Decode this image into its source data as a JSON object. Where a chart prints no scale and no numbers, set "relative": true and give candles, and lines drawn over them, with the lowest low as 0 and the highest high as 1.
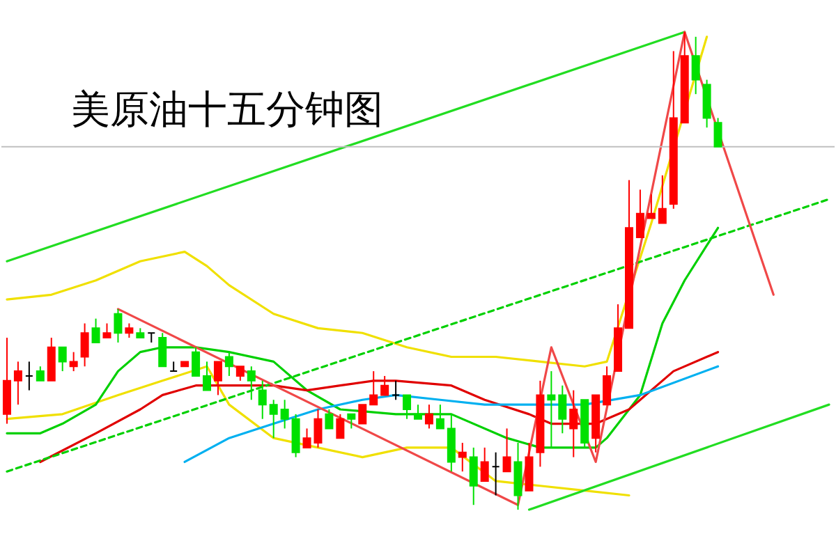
{
  "chart_data": {
    "type": "candlestick",
    "title": "美原油十五分钟图",
    "relative": true,
    "tick_labels": false,
    "categories": [
      null,
      null,
      null,
      null,
      null,
      null,
      null,
      null,
      null,
      null,
      null,
      null,
      null,
      null,
      null,
      null,
      null,
      null,
      null,
      null,
      null,
      null,
      null,
      null,
      null,
      null,
      null,
      null,
      null,
      null,
      null,
      null,
      null,
      null,
      null,
      null,
      null,
      null,
      null,
      null,
      null,
      null,
      null,
      null,
      null,
      null,
      null,
      null,
      null,
      null,
      null,
      null,
      null,
      null,
      null,
      null,
      null,
      null,
      null,
      null,
      null,
      null,
      null,
      null,
      null,
      null,
      null,
      null,
      null,
      null,
      null,
      null,
      null,
      null,
      null
    ],
    "ohlc": [
      [
        0.2,
        0.36,
        0.18,
        0.27
      ],
      [
        0.27,
        0.31,
        0.22,
        0.29
      ],
      [
        0.28,
        0.31,
        0.25,
        0.28
      ],
      [
        0.29,
        0.3,
        0.27,
        0.27
      ],
      [
        0.27,
        0.36,
        0.27,
        0.34
      ],
      [
        0.34,
        0.34,
        0.29,
        0.31
      ],
      [
        0.3,
        0.33,
        0.29,
        0.31
      ],
      [
        0.32,
        0.39,
        0.3,
        0.37
      ],
      [
        0.38,
        0.4,
        0.35,
        0.35
      ],
      [
        0.36,
        0.39,
        0.36,
        0.37
      ],
      [
        0.41,
        0.42,
        0.35,
        0.37
      ],
      [
        0.37,
        0.39,
        0.36,
        0.38
      ],
      [
        0.37,
        0.38,
        0.36,
        0.36
      ],
      [
        0.37,
        0.37,
        0.35,
        0.37
      ],
      [
        0.36,
        0.37,
        0.3,
        0.3
      ],
      [
        0.29,
        0.31,
        0.29,
        0.29
      ],
      [
        0.3,
        0.31,
        0.3,
        0.31
      ],
      [
        0.33,
        0.34,
        0.28,
        0.28
      ],
      [
        0.28,
        0.31,
        0.25,
        0.25
      ],
      [
        0.27,
        0.31,
        0.24,
        0.31
      ],
      [
        0.32,
        0.33,
        0.28,
        0.3
      ],
      [
        0.28,
        0.3,
        0.27,
        0.3
      ],
      [
        0.29,
        0.3,
        0.23,
        0.27
      ],
      [
        0.25,
        0.27,
        0.19,
        0.22
      ],
      [
        0.22,
        0.23,
        0.15,
        0.2
      ],
      [
        0.21,
        0.23,
        0.17,
        0.19
      ],
      [
        0.19,
        0.2,
        0.11,
        0.12
      ],
      [
        0.13,
        0.17,
        0.13,
        0.15
      ],
      [
        0.14,
        0.21,
        0.13,
        0.19
      ],
      [
        0.2,
        0.21,
        0.17,
        0.17
      ],
      [
        0.15,
        0.2,
        0.15,
        0.19
      ],
      [
        0.2,
        0.2,
        0.17,
        0.19
      ],
      [
        0.18,
        0.22,
        0.18,
        0.22
      ],
      [
        0.22,
        0.29,
        0.22,
        0.24
      ],
      [
        0.24,
        0.28,
        0.24,
        0.26
      ],
      [
        0.24,
        0.27,
        0.23,
        0.24
      ],
      [
        0.24,
        0.24,
        0.19,
        0.21
      ],
      [
        0.2,
        0.22,
        0.19,
        0.19
      ],
      [
        0.18,
        0.22,
        0.17,
        0.2
      ],
      [
        0.19,
        0.22,
        0.17,
        0.17
      ],
      [
        0.17,
        0.2,
        0.08,
        0.1
      ],
      [
        0.11,
        0.14,
        0.08,
        0.12
      ],
      [
        0.11,
        0.13,
        0.01,
        0.05
      ],
      [
        0.06,
        0.13,
        0.06,
        0.1
      ],
      [
        0.09,
        0.12,
        0.03,
        0.09
      ],
      [
        0.08,
        0.17,
        0.08,
        0.11
      ],
      [
        0.1,
        0.14,
        0.0,
        0.03
      ],
      [
        0.04,
        0.14,
        0.04,
        0.11
      ],
      [
        0.12,
        0.27,
        0.09,
        0.24
      ],
      [
        0.24,
        0.29,
        0.13,
        0.23
      ],
      [
        0.24,
        0.26,
        0.16,
        0.19
      ],
      [
        0.17,
        0.25,
        0.11,
        0.21
      ],
      [
        0.23,
        0.23,
        0.13,
        0.14
      ],
      [
        0.15,
        0.24,
        0.12,
        0.24
      ],
      [
        0.22,
        0.3,
        0.22,
        0.28
      ],
      [
        0.29,
        0.43,
        0.29,
        0.38
      ],
      [
        0.38,
        0.69,
        0.38,
        0.59
      ],
      [
        0.57,
        0.67,
        0.57,
        0.62
      ],
      [
        0.61,
        0.66,
        0.61,
        0.62
      ],
      [
        0.6,
        0.7,
        0.6,
        0.63
      ],
      [
        0.64,
        0.96,
        0.63,
        0.82
      ],
      [
        0.81,
        1.0,
        0.81,
        0.95
      ],
      [
        0.95,
        0.99,
        0.87,
        0.9
      ],
      [
        0.89,
        0.9,
        0.8,
        0.82
      ],
      [
        0.81,
        0.82,
        0.76,
        0.76
      ],
      null,
      null,
      null,
      null,
      null,
      null,
      null,
      null,
      null,
      null
    ],
    "colors": [
      "#ff0000",
      "#ff0000",
      "#000000",
      "#00e000",
      "#ff0000",
      "#00e000",
      "#ff0000",
      "#ff0000",
      "#00e000",
      "#ff0000",
      "#00e000",
      "#ff0000",
      "#00e000",
      "#000000",
      "#00e000",
      "#000000",
      "#ff0000",
      "#00e000",
      "#00e000",
      "#ff0000",
      "#00e000",
      "#ff0000",
      "#00e000",
      "#00e000",
      "#00e000",
      "#00e000",
      "#00e000",
      "#ff0000",
      "#ff0000",
      "#00e000",
      "#ff0000",
      "#00e000",
      "#ff0000",
      "#ff0000",
      "#ff0000",
      "#000000",
      "#00e000",
      "#00e000",
      "#ff0000",
      "#00e000",
      "#00e000",
      "#ff0000",
      "#00e000",
      "#ff0000",
      "#000000",
      "#ff0000",
      "#00e000",
      "#ff0000",
      "#ff0000",
      "#00e000",
      "#00e000",
      "#ff0000",
      "#00e000",
      "#ff0000",
      "#ff0000",
      "#ff0000",
      "#ff0000",
      "#ff0000",
      "#ff0000",
      "#ff0000",
      "#ff0000",
      "#ff0000",
      "#00e000",
      "#00e000",
      "#00e000",
      null,
      null,
      null,
      null,
      null,
      null,
      null,
      null,
      null,
      null
    ],
    "series": [
      {
        "type": "line",
        "color": "#f0e000",
        "values": [
          0.44,
          null,
          null,
          null,
          0.45,
          null,
          null,
          null,
          0.48,
          null,
          null,
          null,
          0.52,
          null,
          null,
          null,
          0.54,
          null,
          0.51,
          null,
          0.47,
          null,
          null,
          null,
          0.41,
          null,
          null,
          null,
          0.38,
          null,
          null,
          null,
          0.37,
          null,
          null,
          null,
          0.34,
          null,
          null,
          null,
          0.32,
          null,
          null,
          null,
          0.32,
          null,
          null,
          null,
          0.31,
          null,
          null,
          null,
          0.3,
          null,
          0.31,
          null,
          null,
          null,
          0.6,
          null,
          null,
          null,
          null,
          0.99,
          null,
          null,
          null,
          null,
          null,
          null,
          null,
          null,
          null,
          null,
          null
        ]
      },
      {
        "type": "line",
        "color": "#f0e000",
        "values": [
          0.19,
          null,
          null,
          null,
          null,
          0.2,
          null,
          null,
          null,
          null,
          0.24,
          null,
          null,
          null,
          0.27,
          null,
          null,
          null,
          0.3,
          null,
          0.22,
          null,
          null,
          null,
          0.15,
          null,
          null,
          null,
          0.13,
          null,
          null,
          null,
          0.11,
          null,
          null,
          null,
          0.13,
          null,
          null,
          null,
          0.13,
          null,
          null,
          null,
          0.06,
          null,
          null,
          null,
          0.05,
          null,
          null,
          null,
          0.04,
          null,
          null,
          null,
          0.03,
          null,
          null,
          null,
          null,
          null,
          null,
          null,
          null,
          null,
          null,
          null,
          null,
          null,
          null,
          null,
          null,
          null,
          null
        ]
      },
      {
        "type": "line",
        "color": "#00d000",
        "values": [
          0.16,
          null,
          null,
          0.16,
          null,
          0.18,
          null,
          null,
          0.22,
          null,
          0.29,
          null,
          0.33,
          null,
          0.34,
          null,
          null,
          0.34,
          null,
          null,
          0.33,
          null,
          null,
          null,
          0.31,
          null,
          null,
          0.25,
          null,
          null,
          0.21,
          null,
          null,
          null,
          null,
          0.2,
          null,
          null,
          null,
          null,
          0.2,
          null,
          null,
          null,
          null,
          0.15,
          null,
          null,
          0.13,
          null,
          null,
          null,
          null,
          0.13,
          0.15,
          null,
          null,
          0.24,
          null,
          0.39,
          null,
          0.48,
          null,
          null,
          0.59,
          null,
          null,
          null,
          null,
          null,
          null,
          null,
          null,
          null,
          null
        ]
      },
      {
        "type": "line",
        "color": "#e00000",
        "values": [
          null,
          null,
          null,
          0.1,
          null,
          null,
          null,
          null,
          0.16,
          null,
          null,
          null,
          0.21,
          null,
          0.24,
          null,
          null,
          0.26,
          null,
          null,
          0.26,
          null,
          null,
          null,
          0.26,
          null,
          null,
          0.25,
          null,
          null,
          0.26,
          null,
          null,
          0.27,
          null,
          0.27,
          null,
          null,
          null,
          null,
          0.26,
          null,
          null,
          0.23,
          null,
          null,
          null,
          0.2,
          null,
          0.18,
          null,
          null,
          null,
          0.18,
          null,
          null,
          0.21,
          null,
          null,
          null,
          0.29,
          null,
          null,
          null,
          0.33,
          null,
          null,
          null,
          null,
          null,
          null,
          null,
          null,
          null,
          null
        ]
      },
      {
        "type": "line",
        "color": "#00b0f0",
        "values": [
          null,
          null,
          null,
          null,
          null,
          null,
          null,
          null,
          null,
          null,
          null,
          null,
          null,
          null,
          null,
          null,
          0.1,
          null,
          null,
          null,
          0.15,
          null,
          null,
          null,
          0.18,
          null,
          null,
          null,
          0.21,
          null,
          null,
          null,
          0.23,
          null,
          null,
          0.24,
          null,
          null,
          null,
          0.23,
          null,
          null,
          null,
          0.22,
          null,
          null,
          null,
          0.22,
          null,
          null,
          null,
          null,
          0.22,
          null,
          null,
          null,
          null,
          0.24,
          null,
          null,
          null,
          null,
          null,
          null,
          0.3,
          null,
          null,
          null,
          null,
          null,
          null,
          null,
          null,
          null,
          null
        ]
      },
      {
        "type": "line",
        "color": "#00d000",
        "line_style": "dashed",
        "values": [
          0.08,
          null,
          null,
          null,
          null,
          null,
          null,
          null,
          null,
          null,
          null,
          null,
          null,
          null,
          null,
          null,
          null,
          null,
          null,
          null,
          null,
          null,
          null,
          null,
          null,
          null,
          null,
          null,
          null,
          null,
          null,
          null,
          null,
          null,
          null,
          null,
          null,
          null,
          null,
          null,
          null,
          null,
          null,
          null,
          null,
          null,
          null,
          null,
          null,
          null,
          null,
          null,
          null,
          null,
          null,
          null,
          null,
          null,
          null,
          null,
          null,
          null,
          null,
          null,
          null,
          null,
          null,
          null,
          null,
          null,
          null,
          null,
          null,
          null,
          0.65
        ]
      },
      {
        "type": "line",
        "color": "#22dd22",
        "values": [
          0.52,
          null,
          null,
          null,
          null,
          null,
          null,
          null,
          null,
          null,
          null,
          null,
          null,
          null,
          null,
          null,
          null,
          null,
          null,
          null,
          null,
          null,
          null,
          null,
          null,
          null,
          null,
          null,
          null,
          null,
          null,
          null,
          null,
          null,
          null,
          null,
          null,
          null,
          null,
          null,
          null,
          null,
          null,
          null,
          null,
          null,
          null,
          null,
          null,
          null,
          null,
          null,
          null,
          null,
          null,
          null,
          null,
          null,
          null,
          null,
          null,
          1.0,
          null,
          null,
          null,
          null,
          null,
          null,
          null,
          null,
          null,
          null,
          null,
          null,
          null
        ]
      },
      {
        "type": "line",
        "color": "#22dd22",
        "values": [
          null,
          null,
          null,
          null,
          null,
          null,
          null,
          null,
          null,
          null,
          null,
          null,
          null,
          null,
          null,
          null,
          null,
          null,
          null,
          null,
          null,
          null,
          null,
          null,
          null,
          null,
          null,
          null,
          null,
          null,
          null,
          null,
          null,
          null,
          null,
          null,
          null,
          null,
          null,
          null,
          null,
          null,
          null,
          null,
          null,
          null,
          null,
          0.0,
          null,
          null,
          null,
          null,
          null,
          null,
          null,
          null,
          null,
          null,
          null,
          null,
          null,
          null,
          null,
          null,
          null,
          null,
          null,
          null,
          null,
          null,
          null,
          null,
          null,
          null,
          0.22
        ]
      },
      {
        "type": "line",
        "color": "#f04848",
        "values": [
          null,
          null,
          null,
          null,
          null,
          null,
          null,
          null,
          null,
          null,
          0.42,
          null,
          null,
          null,
          null,
          null,
          null,
          null,
          null,
          null,
          null,
          null,
          null,
          null,
          null,
          null,
          null,
          null,
          null,
          null,
          null,
          null,
          null,
          null,
          null,
          null,
          null,
          null,
          null,
          null,
          null,
          null,
          null,
          null,
          null,
          null,
          0.01,
          null,
          null,
          0.34,
          null,
          null,
          null,
          0.1,
          null,
          null,
          null,
          null,
          null,
          null,
          null,
          1.0,
          null,
          null,
          null,
          null,
          null,
          null,
          null,
          0.45,
          null,
          null,
          null,
          null,
          null
        ]
      }
    ],
    "ref_lines": [
      {
        "axis": "y",
        "value": 0.76,
        "color": "#c0c0c0"
      }
    ]
  }
}
